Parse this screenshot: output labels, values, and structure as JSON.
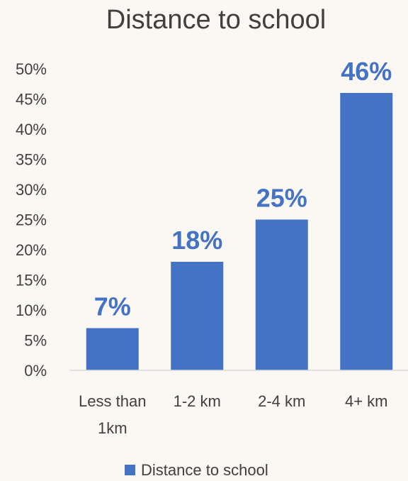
{
  "chart_data": {
    "type": "bar",
    "title": "Distance to school",
    "categories": [
      [
        "Less than",
        "1km"
      ],
      [
        "1-2 km"
      ],
      [
        "2-4 km"
      ],
      [
        "4+ km"
      ]
    ],
    "series": [
      {
        "name": "Distance to school",
        "values": [
          7,
          18,
          25,
          46
        ],
        "data_labels": [
          "7%",
          "18%",
          "25%",
          "46%"
        ],
        "color": "#4472c4"
      }
    ],
    "yticks": [
      "0%",
      "5%",
      "10%",
      "15%",
      "20%",
      "25%",
      "30%",
      "35%",
      "40%",
      "45%",
      "50%"
    ],
    "ylim": [
      0,
      50
    ],
    "grid": false,
    "legend_position": "bottom",
    "axis_color": "#d9d9d9",
    "text_color": "#404040",
    "background": "#fbf7f2"
  }
}
